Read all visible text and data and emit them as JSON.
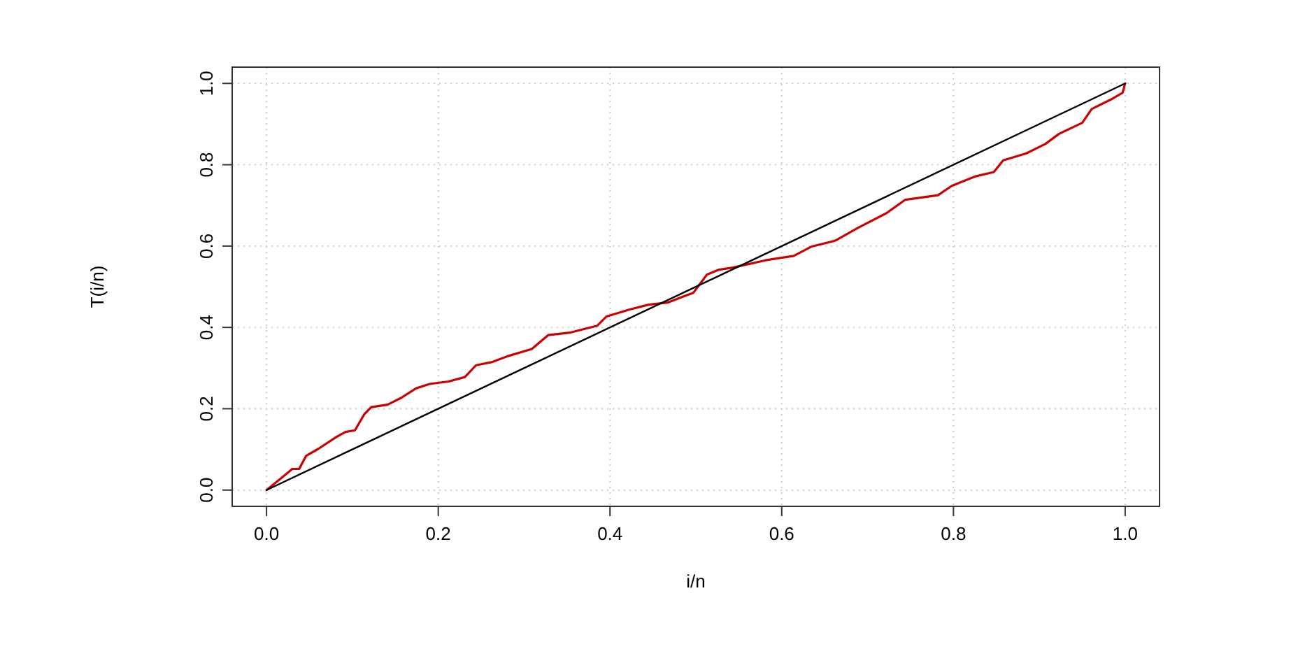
{
  "chart_data": {
    "type": "line",
    "xlabel": "i/n",
    "ylabel": "T(i/n)",
    "xlim": [
      -0.04,
      1.04
    ],
    "ylim": [
      -0.04,
      1.04
    ],
    "xticks": [
      {
        "value": 0,
        "label": "0.0"
      },
      {
        "value": 0.2,
        "label": "0.2"
      },
      {
        "value": 0.4,
        "label": "0.4"
      },
      {
        "value": 0.6,
        "label": "0.6"
      },
      {
        "value": 0.8,
        "label": "0.8"
      },
      {
        "value": 1,
        "label": "1.0"
      }
    ],
    "yticks": [
      {
        "value": 0,
        "label": "0.0"
      },
      {
        "value": 0.2,
        "label": "0.2"
      },
      {
        "value": 0.4,
        "label": "0.4"
      },
      {
        "value": 0.6,
        "label": "0.6"
      },
      {
        "value": 0.8,
        "label": "0.8"
      },
      {
        "value": 1,
        "label": "1.0"
      }
    ],
    "grid": true,
    "marker": "none",
    "line_style": "solid",
    "series": [
      {
        "color": "#cc0000",
        "x": [
          0,
          0.022,
          0.03,
          0.038,
          0.046,
          0.06,
          0.081,
          0.092,
          0.103,
          0.114,
          0.122,
          0.141,
          0.157,
          0.174,
          0.19,
          0.212,
          0.231,
          0.244,
          0.263,
          0.282,
          0.309,
          0.328,
          0.353,
          0.385,
          0.396,
          0.423,
          0.445,
          0.467,
          0.489,
          0.497,
          0.513,
          0.527,
          0.543,
          0.581,
          0.614,
          0.635,
          0.662,
          0.689,
          0.722,
          0.744,
          0.782,
          0.798,
          0.825,
          0.847,
          0.858,
          0.885,
          0.907,
          0.923,
          0.95,
          0.961,
          0.983,
          0.997,
          1
        ],
        "values": [
          0,
          0.038,
          0.052,
          0.052,
          0.084,
          0.101,
          0.13,
          0.143,
          0.147,
          0.187,
          0.204,
          0.21,
          0.227,
          0.25,
          0.261,
          0.267,
          0.278,
          0.307,
          0.315,
          0.33,
          0.347,
          0.381,
          0.387,
          0.404,
          0.427,
          0.444,
          0.456,
          0.461,
          0.479,
          0.485,
          0.53,
          0.542,
          0.547,
          0.565,
          0.576,
          0.599,
          0.613,
          0.645,
          0.681,
          0.714,
          0.725,
          0.748,
          0.771,
          0.782,
          0.811,
          0.828,
          0.851,
          0.876,
          0.903,
          0.937,
          0.96,
          0.977,
          1
        ]
      },
      {
        "color": "#000000",
        "x": [
          0,
          1
        ],
        "values": [
          0,
          1
        ]
      }
    ]
  }
}
